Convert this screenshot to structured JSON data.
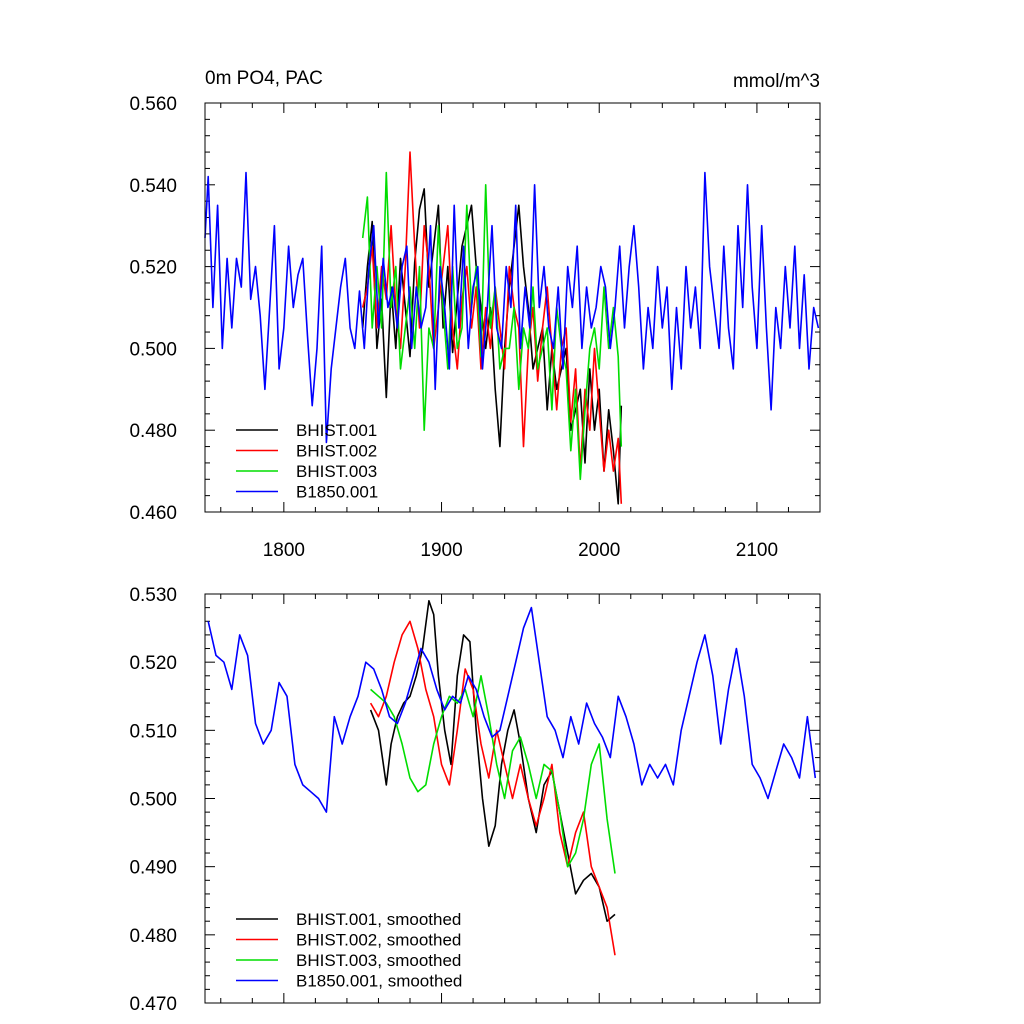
{
  "chart_data": [
    {
      "type": "line",
      "title": "0m PO4, PAC",
      "units": "mmol/m^3",
      "xlim": [
        1750,
        2140
      ],
      "ylim": [
        0.46,
        0.56
      ],
      "xticks": [
        1800,
        1900,
        2000,
        2100
      ],
      "xtick_labels": [
        "1800",
        "1900",
        "2000",
        "2100"
      ],
      "yticks": [
        0.46,
        0.48,
        0.5,
        0.52,
        0.54,
        0.56
      ],
      "ytick_labels": [
        "0.460",
        "0.480",
        "0.500",
        "0.520",
        "0.540",
        "0.560"
      ],
      "legend_location": "bottom-left",
      "series": [
        {
          "name": "BHIST.001",
          "color": "#000000",
          "x": [
            1850,
            1853,
            1856,
            1859,
            1862,
            1865,
            1868,
            1871,
            1874,
            1877,
            1880,
            1883,
            1886,
            1889,
            1892,
            1895,
            1898,
            1901,
            1904,
            1907,
            1910,
            1913,
            1916,
            1919,
            1922,
            1925,
            1928,
            1931,
            1934,
            1937,
            1940,
            1943,
            1946,
            1949,
            1952,
            1955,
            1958,
            1961,
            1964,
            1967,
            1970,
            1973,
            1976,
            1979,
            1982,
            1985,
            1988,
            1991,
            1994,
            1997,
            2000,
            2003,
            2006,
            2009,
            2012,
            2014
          ],
          "y": [
            0.505,
            0.52,
            0.531,
            0.5,
            0.512,
            0.488,
            0.515,
            0.5,
            0.522,
            0.51,
            0.498,
            0.521,
            0.534,
            0.539,
            0.515,
            0.525,
            0.535,
            0.505,
            0.52,
            0.499,
            0.512,
            0.525,
            0.53,
            0.535,
            0.52,
            0.51,
            0.5,
            0.51,
            0.49,
            0.476,
            0.5,
            0.515,
            0.525,
            0.535,
            0.52,
            0.51,
            0.495,
            0.5,
            0.505,
            0.485,
            0.5,
            0.49,
            0.495,
            0.5,
            0.48,
            0.485,
            0.49,
            0.472,
            0.495,
            0.48,
            0.49,
            0.47,
            0.485,
            0.475,
            0.462,
            0.486
          ]
        },
        {
          "name": "BHIST.002",
          "color": "#ff0000",
          "x": [
            1850,
            1853,
            1856,
            1859,
            1862,
            1865,
            1868,
            1871,
            1874,
            1877,
            1880,
            1883,
            1886,
            1889,
            1892,
            1895,
            1898,
            1901,
            1904,
            1907,
            1910,
            1913,
            1916,
            1919,
            1922,
            1925,
            1928,
            1931,
            1934,
            1937,
            1940,
            1943,
            1946,
            1949,
            1952,
            1955,
            1958,
            1961,
            1964,
            1967,
            1970,
            1973,
            1976,
            1979,
            1982,
            1985,
            1988,
            1991,
            1994,
            1997,
            2000,
            2003,
            2006,
            2009,
            2012,
            2014
          ],
          "y": [
            0.51,
            0.515,
            0.525,
            0.505,
            0.52,
            0.512,
            0.53,
            0.51,
            0.5,
            0.52,
            0.548,
            0.525,
            0.505,
            0.53,
            0.52,
            0.5,
            0.51,
            0.52,
            0.53,
            0.505,
            0.495,
            0.512,
            0.52,
            0.505,
            0.515,
            0.495,
            0.51,
            0.5,
            0.515,
            0.505,
            0.495,
            0.52,
            0.51,
            0.505,
            0.476,
            0.5,
            0.51,
            0.492,
            0.505,
            0.515,
            0.5,
            0.485,
            0.5,
            0.505,
            0.482,
            0.495,
            0.47,
            0.49,
            0.48,
            0.5,
            0.485,
            0.47,
            0.48,
            0.47,
            0.478,
            0.462
          ]
        },
        {
          "name": "BHIST.003",
          "color": "#00dd00",
          "x": [
            1850,
            1853,
            1856,
            1859,
            1862,
            1865,
            1868,
            1871,
            1874,
            1877,
            1880,
            1883,
            1886,
            1889,
            1892,
            1895,
            1898,
            1901,
            1904,
            1907,
            1910,
            1913,
            1916,
            1919,
            1922,
            1925,
            1928,
            1931,
            1934,
            1937,
            1940,
            1943,
            1946,
            1949,
            1952,
            1955,
            1958,
            1961,
            1964,
            1967,
            1970,
            1973,
            1976,
            1979,
            1982,
            1985,
            1988,
            1991,
            1994,
            1997,
            2000,
            2003,
            2006,
            2009,
            2012,
            2014
          ],
          "y": [
            0.527,
            0.537,
            0.505,
            0.52,
            0.505,
            0.543,
            0.51,
            0.52,
            0.495,
            0.505,
            0.515,
            0.5,
            0.52,
            0.48,
            0.505,
            0.5,
            0.53,
            0.51,
            0.495,
            0.52,
            0.5,
            0.505,
            0.535,
            0.51,
            0.52,
            0.498,
            0.54,
            0.505,
            0.515,
            0.495,
            0.5,
            0.5,
            0.51,
            0.49,
            0.505,
            0.5,
            0.515,
            0.495,
            0.5,
            0.505,
            0.485,
            0.51,
            0.5,
            0.495,
            0.475,
            0.49,
            0.468,
            0.485,
            0.5,
            0.505,
            0.495,
            0.515,
            0.5,
            0.51,
            0.498,
            0.476
          ]
        },
        {
          "name": "B1850.001",
          "color": "#0000ff",
          "x": [
            1750,
            1752,
            1755,
            1758,
            1761,
            1764,
            1767,
            1770,
            1773,
            1776,
            1779,
            1782,
            1785,
            1788,
            1791,
            1794,
            1797,
            1800,
            1803,
            1806,
            1809,
            1812,
            1815,
            1818,
            1821,
            1824,
            1827,
            1830,
            1833,
            1836,
            1839,
            1842,
            1845,
            1848,
            1851,
            1854,
            1857,
            1860,
            1863,
            1866,
            1869,
            1872,
            1875,
            1878,
            1881,
            1884,
            1887,
            1890,
            1893,
            1896,
            1899,
            1902,
            1905,
            1908,
            1911,
            1914,
            1917,
            1920,
            1923,
            1926,
            1929,
            1932,
            1935,
            1938,
            1941,
            1944,
            1947,
            1950,
            1953,
            1956,
            1959,
            1962,
            1965,
            1968,
            1971,
            1974,
            1977,
            1980,
            1983,
            1986,
            1989,
            1992,
            1995,
            1998,
            2001,
            2004,
            2007,
            2010,
            2013,
            2016,
            2019,
            2022,
            2025,
            2028,
            2031,
            2034,
            2037,
            2040,
            2043,
            2046,
            2049,
            2052,
            2055,
            2058,
            2061,
            2064,
            2067,
            2070,
            2073,
            2076,
            2079,
            2082,
            2085,
            2088,
            2091,
            2094,
            2097,
            2100,
            2103,
            2106,
            2109,
            2112,
            2115,
            2118,
            2121,
            2124,
            2127,
            2130,
            2133,
            2136,
            2139
          ],
          "y": [
            0.527,
            0.542,
            0.51,
            0.535,
            0.5,
            0.522,
            0.505,
            0.522,
            0.515,
            0.543,
            0.512,
            0.52,
            0.508,
            0.49,
            0.51,
            0.53,
            0.495,
            0.505,
            0.525,
            0.51,
            0.518,
            0.522,
            0.503,
            0.486,
            0.5,
            0.525,
            0.477,
            0.495,
            0.505,
            0.515,
            0.522,
            0.505,
            0.5,
            0.514,
            0.5,
            0.52,
            0.53,
            0.505,
            0.522,
            0.51,
            0.515,
            0.505,
            0.52,
            0.525,
            0.5,
            0.515,
            0.505,
            0.51,
            0.53,
            0.49,
            0.52,
            0.51,
            0.495,
            0.535,
            0.505,
            0.525,
            0.5,
            0.515,
            0.52,
            0.495,
            0.51,
            0.53,
            0.505,
            0.5,
            0.52,
            0.51,
            0.535,
            0.5,
            0.515,
            0.505,
            0.54,
            0.51,
            0.52,
            0.505,
            0.5,
            0.515,
            0.495,
            0.52,
            0.51,
            0.525,
            0.5,
            0.515,
            0.505,
            0.51,
            0.52,
            0.515,
            0.5,
            0.51,
            0.525,
            0.505,
            0.52,
            0.53,
            0.515,
            0.495,
            0.51,
            0.5,
            0.52,
            0.505,
            0.515,
            0.49,
            0.51,
            0.495,
            0.52,
            0.505,
            0.515,
            0.5,
            0.543,
            0.52,
            0.51,
            0.5,
            0.525,
            0.505,
            0.495,
            0.53,
            0.51,
            0.54,
            0.515,
            0.5,
            0.53,
            0.505,
            0.485,
            0.51,
            0.5,
            0.52,
            0.505,
            0.525,
            0.5,
            0.518,
            0.495,
            0.51,
            0.505
          ]
        }
      ]
    },
    {
      "type": "line",
      "title": "",
      "xlim": [
        1750,
        2140
      ],
      "ylim": [
        0.47,
        0.53
      ],
      "xticks": [
        1800,
        1900,
        2000,
        2100
      ],
      "xtick_labels": [],
      "yticks": [
        0.47,
        0.48,
        0.49,
        0.5,
        0.51,
        0.52,
        0.53
      ],
      "ytick_labels": [
        "0.470",
        "0.480",
        "0.490",
        "0.500",
        "0.510",
        "0.520",
        "0.530"
      ],
      "legend_location": "bottom-left",
      "series": [
        {
          "name": "BHIST.001, smoothed",
          "color": "#000000",
          "x": [
            1855,
            1860,
            1865,
            1868,
            1872,
            1876,
            1880,
            1884,
            1888,
            1892,
            1895,
            1898,
            1902,
            1906,
            1910,
            1914,
            1918,
            1922,
            1926,
            1930,
            1934,
            1938,
            1942,
            1946,
            1950,
            1955,
            1960,
            1965,
            1970,
            1975,
            1980,
            1985,
            1990,
            1995,
            2000,
            2005,
            2010
          ],
          "y": [
            0.513,
            0.51,
            0.502,
            0.508,
            0.512,
            0.514,
            0.515,
            0.518,
            0.522,
            0.529,
            0.527,
            0.518,
            0.51,
            0.505,
            0.518,
            0.524,
            0.523,
            0.51,
            0.5,
            0.493,
            0.496,
            0.505,
            0.51,
            0.513,
            0.508,
            0.5,
            0.495,
            0.502,
            0.504,
            0.498,
            0.492,
            0.486,
            0.488,
            0.489,
            0.487,
            0.482,
            0.483
          ]
        },
        {
          "name": "BHIST.002, smoothed",
          "color": "#ff0000",
          "x": [
            1855,
            1860,
            1865,
            1870,
            1875,
            1880,
            1885,
            1890,
            1895,
            1900,
            1905,
            1910,
            1915,
            1920,
            1925,
            1930,
            1935,
            1940,
            1945,
            1950,
            1955,
            1960,
            1965,
            1970,
            1975,
            1980,
            1985,
            1990,
            1995,
            2000,
            2005,
            2010
          ],
          "y": [
            0.514,
            0.512,
            0.515,
            0.52,
            0.524,
            0.526,
            0.522,
            0.516,
            0.512,
            0.505,
            0.502,
            0.51,
            0.519,
            0.516,
            0.508,
            0.503,
            0.51,
            0.505,
            0.5,
            0.505,
            0.5,
            0.496,
            0.5,
            0.505,
            0.495,
            0.49,
            0.495,
            0.498,
            0.49,
            0.487,
            0.484,
            0.477
          ]
        },
        {
          "name": "BHIST.003, smoothed",
          "color": "#00dd00",
          "x": [
            1855,
            1860,
            1865,
            1870,
            1875,
            1880,
            1885,
            1890,
            1895,
            1900,
            1905,
            1910,
            1915,
            1920,
            1925,
            1930,
            1935,
            1940,
            1945,
            1950,
            1955,
            1960,
            1965,
            1970,
            1975,
            1980,
            1985,
            1990,
            1995,
            2000,
            2005,
            2010
          ],
          "y": [
            0.516,
            0.515,
            0.514,
            0.512,
            0.508,
            0.503,
            0.501,
            0.502,
            0.508,
            0.512,
            0.515,
            0.514,
            0.516,
            0.512,
            0.518,
            0.512,
            0.505,
            0.5,
            0.507,
            0.509,
            0.505,
            0.5,
            0.505,
            0.504,
            0.498,
            0.49,
            0.492,
            0.497,
            0.505,
            0.508,
            0.497,
            0.489
          ]
        },
        {
          "name": "B1850.001, smoothed",
          "color": "#0000ff",
          "x": [
            1752,
            1757,
            1762,
            1767,
            1772,
            1777,
            1782,
            1787,
            1792,
            1797,
            1802,
            1807,
            1812,
            1817,
            1822,
            1827,
            1832,
            1837,
            1842,
            1847,
            1852,
            1857,
            1862,
            1867,
            1872,
            1877,
            1882,
            1887,
            1892,
            1897,
            1902,
            1907,
            1912,
            1917,
            1922,
            1927,
            1932,
            1937,
            1942,
            1947,
            1952,
            1957,
            1962,
            1967,
            1972,
            1977,
            1982,
            1987,
            1992,
            1997,
            2002,
            2007,
            2012,
            2017,
            2022,
            2027,
            2032,
            2037,
            2042,
            2047,
            2052,
            2057,
            2062,
            2067,
            2072,
            2077,
            2082,
            2087,
            2092,
            2097,
            2102,
            2107,
            2112,
            2117,
            2122,
            2127,
            2132,
            2137
          ],
          "y": [
            0.526,
            0.521,
            0.52,
            0.516,
            0.524,
            0.521,
            0.511,
            0.508,
            0.51,
            0.517,
            0.515,
            0.505,
            0.502,
            0.501,
            0.5,
            0.498,
            0.512,
            0.508,
            0.512,
            0.515,
            0.52,
            0.519,
            0.516,
            0.512,
            0.511,
            0.514,
            0.518,
            0.522,
            0.52,
            0.516,
            0.513,
            0.515,
            0.514,
            0.518,
            0.516,
            0.512,
            0.509,
            0.51,
            0.515,
            0.52,
            0.525,
            0.528,
            0.52,
            0.512,
            0.51,
            0.506,
            0.512,
            0.508,
            0.514,
            0.511,
            0.509,
            0.506,
            0.515,
            0.512,
            0.508,
            0.502,
            0.505,
            0.503,
            0.505,
            0.502,
            0.51,
            0.515,
            0.52,
            0.524,
            0.518,
            0.508,
            0.516,
            0.522,
            0.515,
            0.505,
            0.503,
            0.5,
            0.504,
            0.508,
            0.506,
            0.503,
            0.512,
            0.503
          ]
        }
      ]
    }
  ]
}
